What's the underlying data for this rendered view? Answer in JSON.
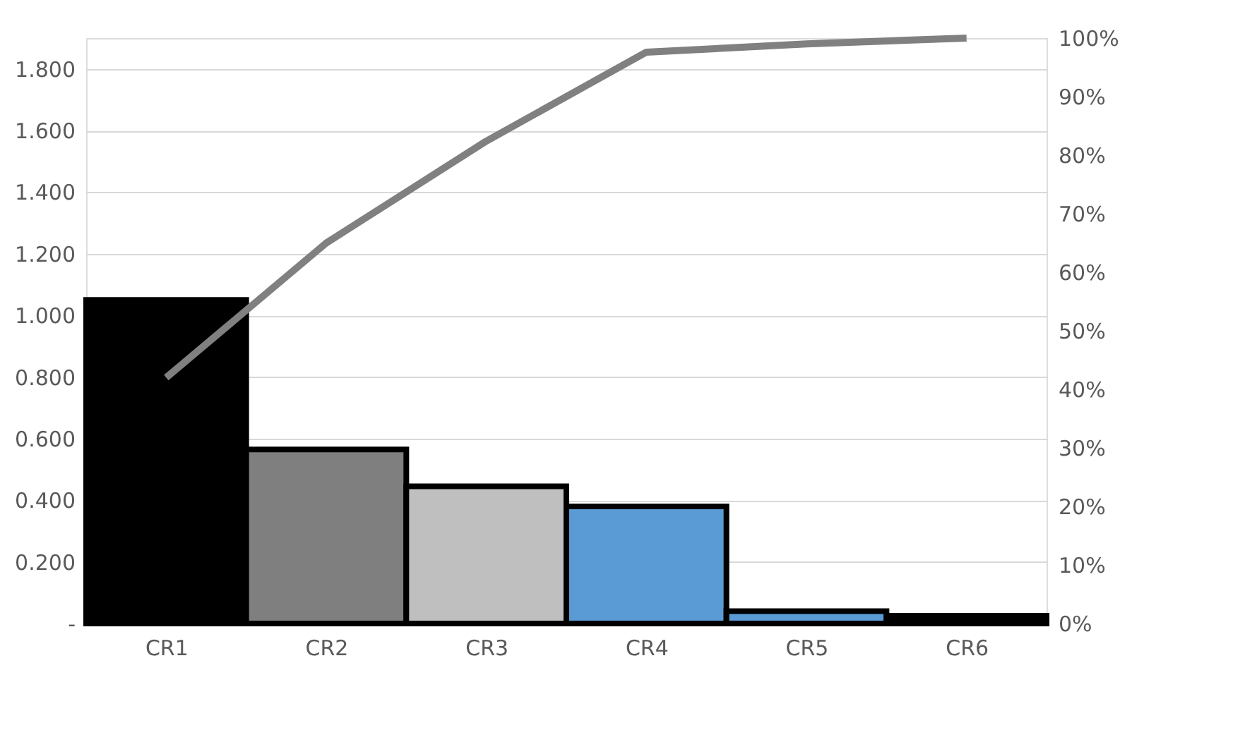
{
  "chart_data": {
    "type": "bar",
    "categories": [
      "CR1",
      "CR2",
      "CR3",
      "CR4",
      "CR5",
      "CR6"
    ],
    "series": [
      {
        "values": [
          1.05,
          0.565,
          0.445,
          0.38,
          0.04,
          0.025
        ],
        "colors": [
          "#000000",
          "#7f7f7f",
          "#bfbfbf",
          "#5b9bd5",
          "#5b9bd5",
          "#000000"
        ]
      },
      {
        "type": "line",
        "axis": "y2",
        "color": "#808080",
        "values": [
          42,
          65,
          82.4,
          97.6,
          99,
          100
        ]
      }
    ],
    "ylim": [
      0,
      1.9
    ],
    "yticks": [
      {
        "value": 0,
        "label": "-"
      },
      {
        "value": 0.2,
        "label": "0.200"
      },
      {
        "value": 0.4,
        "label": "0.400"
      },
      {
        "value": 0.6,
        "label": "0.600"
      },
      {
        "value": 0.8,
        "label": "0.800"
      },
      {
        "value": 1.0,
        "label": "1.000"
      },
      {
        "value": 1.2,
        "label": "1.200"
      },
      {
        "value": 1.4,
        "label": "1.400"
      },
      {
        "value": 1.6,
        "label": "1.600"
      },
      {
        "value": 1.8,
        "label": "1.800"
      }
    ],
    "y2lim": [
      0,
      100
    ],
    "y2ticks": [
      {
        "value": 0,
        "label": "0%"
      },
      {
        "value": 10,
        "label": "10%"
      },
      {
        "value": 20,
        "label": "20%"
      },
      {
        "value": 30,
        "label": "30%"
      },
      {
        "value": 40,
        "label": "40%"
      },
      {
        "value": 50,
        "label": "50%"
      },
      {
        "value": 60,
        "label": "60%"
      },
      {
        "value": 70,
        "label": "70%"
      },
      {
        "value": 80,
        "label": "80%"
      },
      {
        "value": 90,
        "label": "90%"
      },
      {
        "value": 100,
        "label": "100%"
      }
    ],
    "grid": "y"
  }
}
